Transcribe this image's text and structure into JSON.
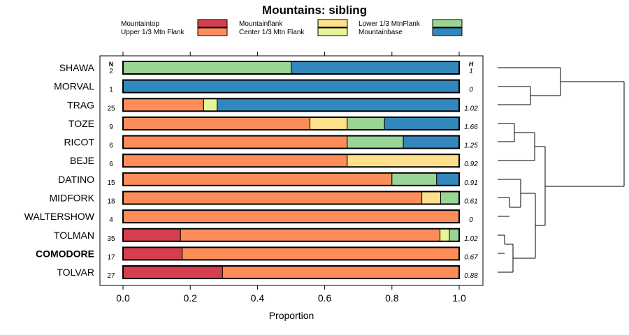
{
  "chart_data": {
    "type": "bar",
    "stacked": true,
    "horizontal": true,
    "title": "Mountains: sibling",
    "xlabel": "Proportion",
    "ylabel": "",
    "xlim": [
      0,
      1
    ],
    "xticks": [
      "0.0",
      "0.2",
      "0.4",
      "0.6",
      "0.8",
      "1.0"
    ],
    "n_header": "N",
    "h_header": "H",
    "legend_position": "top",
    "categories": [
      "SHAWA",
      "MORVAL",
      "TRAG",
      "TOZE",
      "RICOT",
      "BEJE",
      "DATINO",
      "MIDFORK",
      "WALTERSHOW",
      "TOLMAN",
      "COMODORE",
      "TOLVAR"
    ],
    "highlight_category": "COMODORE",
    "n": [
      "2",
      "1",
      "25",
      "9",
      "6",
      "6",
      "15",
      "18",
      "4",
      "35",
      "17",
      "27"
    ],
    "h": [
      "1",
      "0",
      "1.02",
      "1.66",
      "1.25",
      "0.92",
      "0.91",
      "0.61",
      "0",
      "1.02",
      "0.67",
      "0.88"
    ],
    "series": [
      {
        "name": "Mountaintop",
        "color": "#d53e4f",
        "values": [
          0,
          0,
          0,
          0,
          0,
          0,
          0,
          0,
          0,
          0.171,
          0.176,
          0.296
        ]
      },
      {
        "name": "Upper 1/3 Mtn Flank",
        "color": "#fc8d59",
        "values": [
          0,
          0,
          0.24,
          0.556,
          0.667,
          0.667,
          0.8,
          0.889,
          1.0,
          0.772,
          0.824,
          0.704
        ]
      },
      {
        "name": "Mountainflank",
        "color": "#fee08b",
        "values": [
          0,
          0,
          0,
          0.111,
          0,
          0.333,
          0,
          0.056,
          0,
          0,
          0,
          0
        ]
      },
      {
        "name": "Center 1/3 Mtn Flank",
        "color": "#e6f598",
        "values": [
          0,
          0,
          0.04,
          0,
          0,
          0,
          0,
          0,
          0,
          0.028,
          0,
          0
        ]
      },
      {
        "name": "Lower 1/3 MtnFlank",
        "color": "#99d594",
        "values": [
          0.5,
          0,
          0,
          0.111,
          0.167,
          0,
          0.133,
          0.055,
          0,
          0.029,
          0,
          0
        ]
      },
      {
        "name": "Mountainbase",
        "color": "#3288bd",
        "values": [
          0.5,
          1.0,
          0.72,
          0.222,
          0.166,
          0,
          0.067,
          0,
          0,
          0,
          0,
          0
        ]
      }
    ],
    "dendrogram": {
      "type": "dendrogram",
      "description": "hierarchical clustering of the categories",
      "leaves": [
        "SHAWA",
        "MORVAL",
        "TRAG",
        "TOZE",
        "RICOT",
        "BEJE",
        "DATINO",
        "MIDFORK",
        "WALTERSHOW",
        "TOLMAN",
        "COMODORE",
        "TOLVAR"
      ]
    }
  }
}
